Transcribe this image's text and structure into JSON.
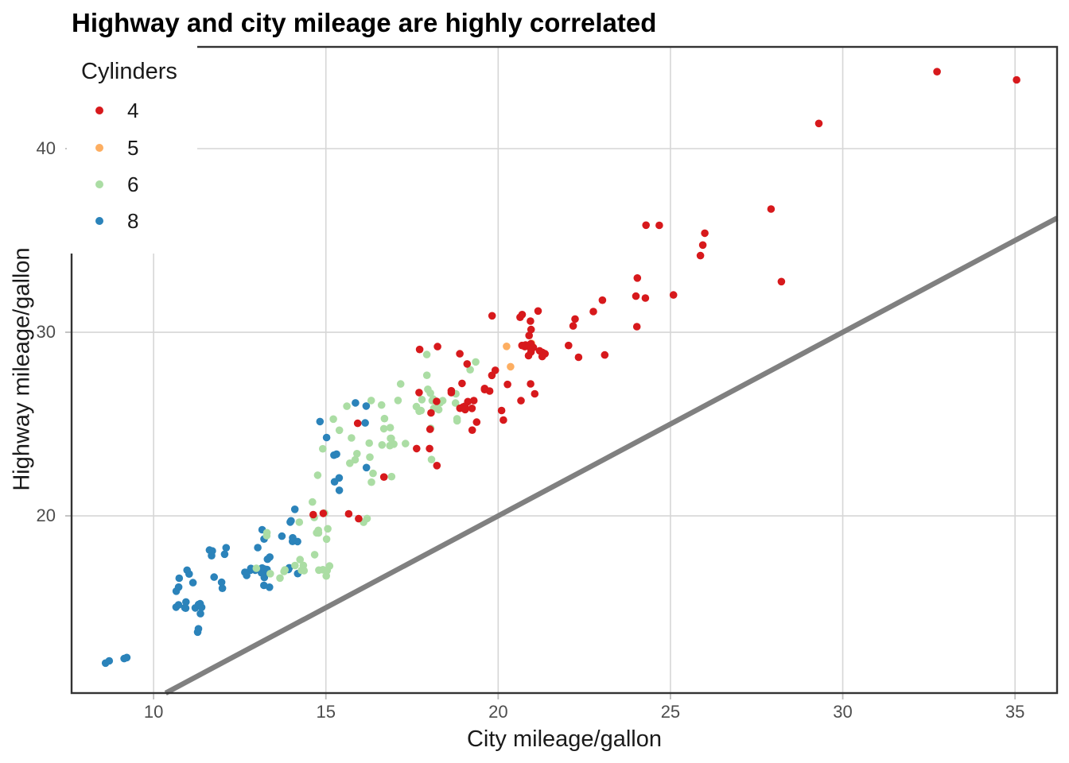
{
  "title": "Highway and city mileage are highly correlated",
  "chart_data": {
    "type": "scatter",
    "title": "Highway and city mileage are highly correlated",
    "xlabel": "City mileage/gallon",
    "ylabel": "Highway mileage/gallon",
    "xlim": [
      7.62,
      36.22
    ],
    "ylim": [
      10.35,
      45.54
    ],
    "xticks": [
      10,
      15,
      20,
      25,
      30,
      35
    ],
    "yticks": [
      20,
      30,
      40
    ],
    "grid": true,
    "minor_grid": false,
    "jitter": {
      "width": 0.4,
      "height": 0.4
    },
    "abline": {
      "slope": 1,
      "intercept": 0
    },
    "legend": {
      "title": "Cylinders",
      "position": "top-left-inside"
    },
    "series": [
      {
        "name": "4",
        "color": "#D7191C",
        "points": [
          [
            18,
            29
          ],
          [
            21,
            29
          ],
          [
            20,
            31
          ],
          [
            21,
            30
          ],
          [
            18,
            26
          ],
          [
            16,
            25
          ],
          [
            20,
            28
          ],
          [
            19,
            27
          ],
          [
            19,
            27
          ],
          [
            22,
            30
          ],
          [
            18,
            24
          ],
          [
            28,
            33
          ],
          [
            24,
            32
          ],
          [
            25,
            32
          ],
          [
            23,
            29
          ],
          [
            24,
            32
          ],
          [
            26,
            34
          ],
          [
            25,
            36
          ],
          [
            24,
            36
          ],
          [
            21,
            29
          ],
          [
            18,
            26
          ],
          [
            18,
            27
          ],
          [
            21,
            30
          ],
          [
            21,
            31
          ],
          [
            19,
            26
          ],
          [
            19,
            29
          ],
          [
            20,
            28
          ],
          [
            20,
            27
          ],
          [
            21,
            29
          ],
          [
            19,
            27
          ],
          [
            23,
            31
          ],
          [
            23,
            32
          ],
          [
            18,
            25
          ],
          [
            18,
            24
          ],
          [
            20,
            27
          ],
          [
            19,
            25
          ],
          [
            20,
            26
          ],
          [
            18,
            23
          ],
          [
            21,
            26
          ],
          [
            19,
            26
          ],
          [
            19,
            26
          ],
          [
            19,
            26
          ],
          [
            20,
            25
          ],
          [
            20,
            27
          ],
          [
            19,
            25
          ],
          [
            20,
            27
          ],
          [
            15,
            20
          ],
          [
            16,
            20
          ],
          [
            21,
            29
          ],
          [
            21,
            27
          ],
          [
            21,
            31
          ],
          [
            21,
            31
          ],
          [
            21,
            27
          ],
          [
            21,
            29
          ],
          [
            21,
            31
          ],
          [
            22,
            31
          ],
          [
            24,
            30
          ],
          [
            24,
            33
          ],
          [
            26,
            35
          ],
          [
            28,
            37
          ],
          [
            26,
            35
          ],
          [
            15,
            20
          ],
          [
            16,
            20
          ],
          [
            17,
            22
          ],
          [
            21,
            29
          ],
          [
            19,
            26
          ],
          [
            21,
            29
          ],
          [
            22,
            29
          ],
          [
            33,
            44
          ],
          [
            21,
            29
          ],
          [
            19,
            26
          ],
          [
            22,
            29
          ],
          [
            21,
            29
          ],
          [
            35,
            44
          ],
          [
            29,
            41
          ],
          [
            21,
            29
          ],
          [
            19,
            26
          ],
          [
            21,
            29
          ],
          [
            18,
            29
          ],
          [
            19,
            28
          ],
          [
            21,
            29
          ]
        ]
      },
      {
        "name": "5",
        "color": "#FDAE61",
        "points": [
          [
            21,
            29
          ],
          [
            21,
            29
          ],
          [
            20,
            28
          ],
          [
            20,
            29
          ]
        ]
      },
      {
        "name": "6",
        "color": "#ABDDA4",
        "points": [
          [
            16,
            26
          ],
          [
            18,
            26
          ],
          [
            18,
            27
          ],
          [
            15,
            25
          ],
          [
            17,
            25
          ],
          [
            17,
            25
          ],
          [
            15,
            25
          ],
          [
            15,
            24
          ],
          [
            17,
            25
          ],
          [
            18,
            26
          ],
          [
            18,
            29
          ],
          [
            17,
            26
          ],
          [
            17,
            24
          ],
          [
            16,
            22
          ],
          [
            16,
            22
          ],
          [
            17,
            24
          ],
          [
            15,
            22
          ],
          [
            15,
            21
          ],
          [
            16,
            23
          ],
          [
            16,
            23
          ],
          [
            15,
            19
          ],
          [
            14,
            18
          ],
          [
            13,
            17
          ],
          [
            14,
            17
          ],
          [
            13,
            17
          ],
          [
            14,
            17
          ],
          [
            15,
            19
          ],
          [
            14,
            17
          ],
          [
            13,
            19
          ],
          [
            14,
            17
          ],
          [
            14,
            17
          ],
          [
            18,
            26
          ],
          [
            18,
            25
          ],
          [
            17,
            26
          ],
          [
            16,
            24
          ],
          [
            18,
            26
          ],
          [
            18,
            26
          ],
          [
            19,
            28
          ],
          [
            17,
            24
          ],
          [
            16,
            24
          ],
          [
            17,
            24
          ],
          [
            17,
            22
          ],
          [
            15,
            19
          ],
          [
            15,
            20
          ],
          [
            14,
            17
          ],
          [
            13,
            19
          ],
          [
            19,
            27
          ],
          [
            19,
            26
          ],
          [
            18,
            26
          ],
          [
            19,
            25
          ],
          [
            19,
            25
          ],
          [
            14,
            17
          ],
          [
            15,
            17
          ],
          [
            14,
            20
          ],
          [
            18,
            26
          ],
          [
            16,
            26
          ],
          [
            17,
            27
          ],
          [
            18,
            28
          ],
          [
            15,
            19
          ],
          [
            15,
            17
          ],
          [
            16,
            20
          ],
          [
            18,
            26
          ],
          [
            18,
            26
          ],
          [
            19,
            28
          ],
          [
            18,
            26
          ],
          [
            18,
            26
          ],
          [
            18,
            27
          ],
          [
            18,
            23
          ],
          [
            16,
            23
          ],
          [
            15,
            17
          ],
          [
            15,
            19
          ],
          [
            15,
            18
          ],
          [
            16,
            20
          ],
          [
            15,
            17
          ],
          [
            15,
            17
          ],
          [
            15,
            20
          ],
          [
            17,
            24
          ],
          [
            16,
            23
          ],
          [
            17,
            24
          ]
        ]
      },
      {
        "name": "8",
        "color": "#2B83BA",
        "points": [
          [
            16,
            23
          ],
          [
            14,
            20
          ],
          [
            11,
            15
          ],
          [
            14,
            20
          ],
          [
            13,
            17
          ],
          [
            12,
            17
          ],
          [
            16,
            26
          ],
          [
            15,
            23
          ],
          [
            16,
            26
          ],
          [
            15,
            25
          ],
          [
            15,
            24
          ],
          [
            14,
            19
          ],
          [
            11,
            14
          ],
          [
            11,
            15
          ],
          [
            14,
            17
          ],
          [
            14,
            19
          ],
          [
            14,
            19
          ],
          [
            9,
            12
          ],
          [
            13,
            17
          ],
          [
            9,
            12
          ],
          [
            13,
            17
          ],
          [
            11,
            16
          ],
          [
            13,
            18
          ],
          [
            11,
            15
          ],
          [
            12,
            16
          ],
          [
            9,
            12
          ],
          [
            13,
            17
          ],
          [
            13,
            17
          ],
          [
            12,
            16
          ],
          [
            11,
            15
          ],
          [
            11,
            16
          ],
          [
            13,
            17
          ],
          [
            11,
            15
          ],
          [
            13,
            17
          ],
          [
            11,
            17
          ],
          [
            11,
            17
          ],
          [
            12,
            18
          ],
          [
            13,
            19
          ],
          [
            13,
            16
          ],
          [
            13,
            16
          ],
          [
            13,
            17
          ],
          [
            11,
            15
          ],
          [
            13,
            17
          ],
          [
            15,
            21
          ],
          [
            15,
            22
          ],
          [
            15,
            23
          ],
          [
            15,
            22
          ],
          [
            14,
            20
          ],
          [
            14,
            17
          ],
          [
            9,
            12
          ],
          [
            14,
            19
          ],
          [
            13,
            18
          ],
          [
            11,
            14
          ],
          [
            11,
            15
          ],
          [
            12,
            18
          ],
          [
            12,
            18
          ],
          [
            11,
            15
          ],
          [
            11,
            17
          ],
          [
            11,
            16
          ],
          [
            12,
            18
          ],
          [
            13,
            19
          ],
          [
            13,
            17
          ],
          [
            12,
            18
          ],
          [
            16,
            25
          ],
          [
            14,
            17
          ],
          [
            11,
            15
          ],
          [
            13,
            18
          ],
          [
            11,
            15
          ],
          [
            13,
            17
          ],
          [
            13,
            17
          ]
        ]
      }
    ],
    "style": {
      "background": "#ffffff",
      "panel_border_color": "#333333",
      "grid_color": "#d6d6d6",
      "tick_color": "#bdbdbd",
      "abline_color": "#808080",
      "tick_label_color": "#4d4d4d",
      "text_color": "#1a1a1a"
    }
  }
}
